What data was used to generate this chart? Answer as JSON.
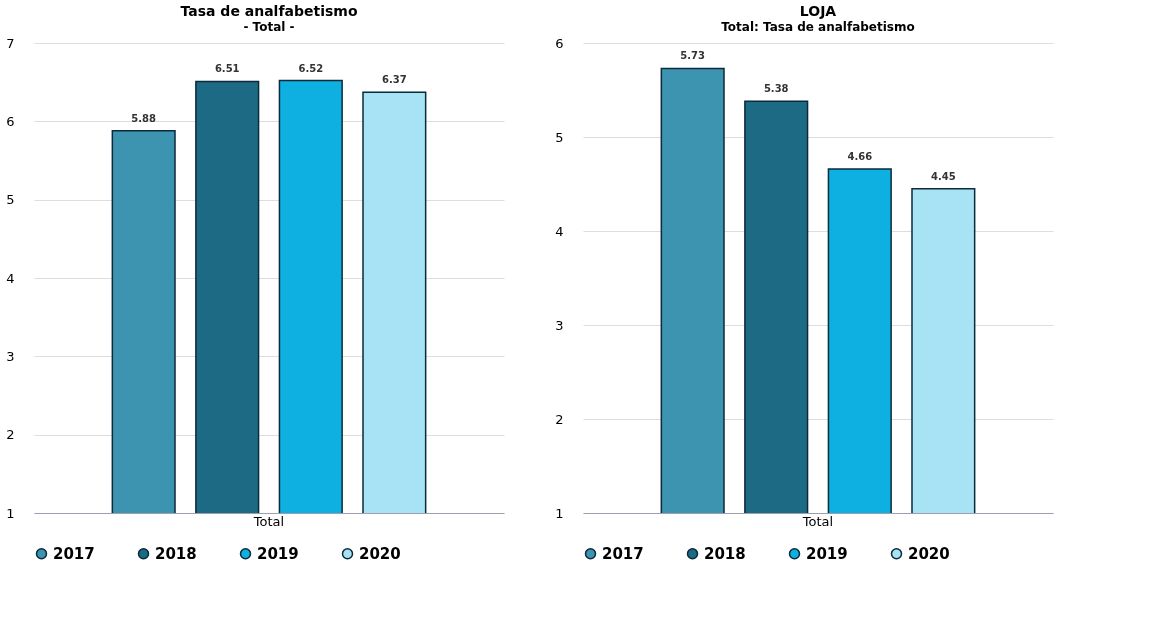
{
  "chart_data": [
    {
      "type": "bar",
      "title": "Tasa de analfabetismo",
      "subtitle": "- Total -",
      "categories": [
        "Total"
      ],
      "series": [
        {
          "name": "2017",
          "color": "#3d94b0",
          "values": [
            5.88
          ]
        },
        {
          "name": "2018",
          "color": "#1d6a85",
          "values": [
            6.51
          ]
        },
        {
          "name": "2019",
          "color": "#0eb0e2",
          "values": [
            6.52
          ]
        },
        {
          "name": "2020",
          "color": "#a8e2f5",
          "values": [
            6.37
          ]
        }
      ],
      "ylim": [
        1,
        7
      ],
      "yticks": [
        1,
        2,
        3,
        4,
        5,
        6,
        7
      ],
      "grid": "y",
      "legend": "bottom",
      "data_labels": true
    },
    {
      "type": "bar",
      "title": "LOJA",
      "subtitle": "Total: Tasa de analfabetismo",
      "categories": [
        "Total"
      ],
      "series": [
        {
          "name": "2017",
          "color": "#3d94b0",
          "values": [
            5.73
          ]
        },
        {
          "name": "2018",
          "color": "#1d6a85",
          "values": [
            5.38
          ]
        },
        {
          "name": "2019",
          "color": "#0eb0e2",
          "values": [
            4.66
          ]
        },
        {
          "name": "2020",
          "color": "#a8e2f5",
          "values": [
            4.45
          ]
        }
      ],
      "ylim": [
        1,
        6
      ],
      "yticks": [
        1,
        2,
        3,
        4,
        5,
        6
      ],
      "grid": "y",
      "legend": "bottom",
      "data_labels": true
    }
  ]
}
